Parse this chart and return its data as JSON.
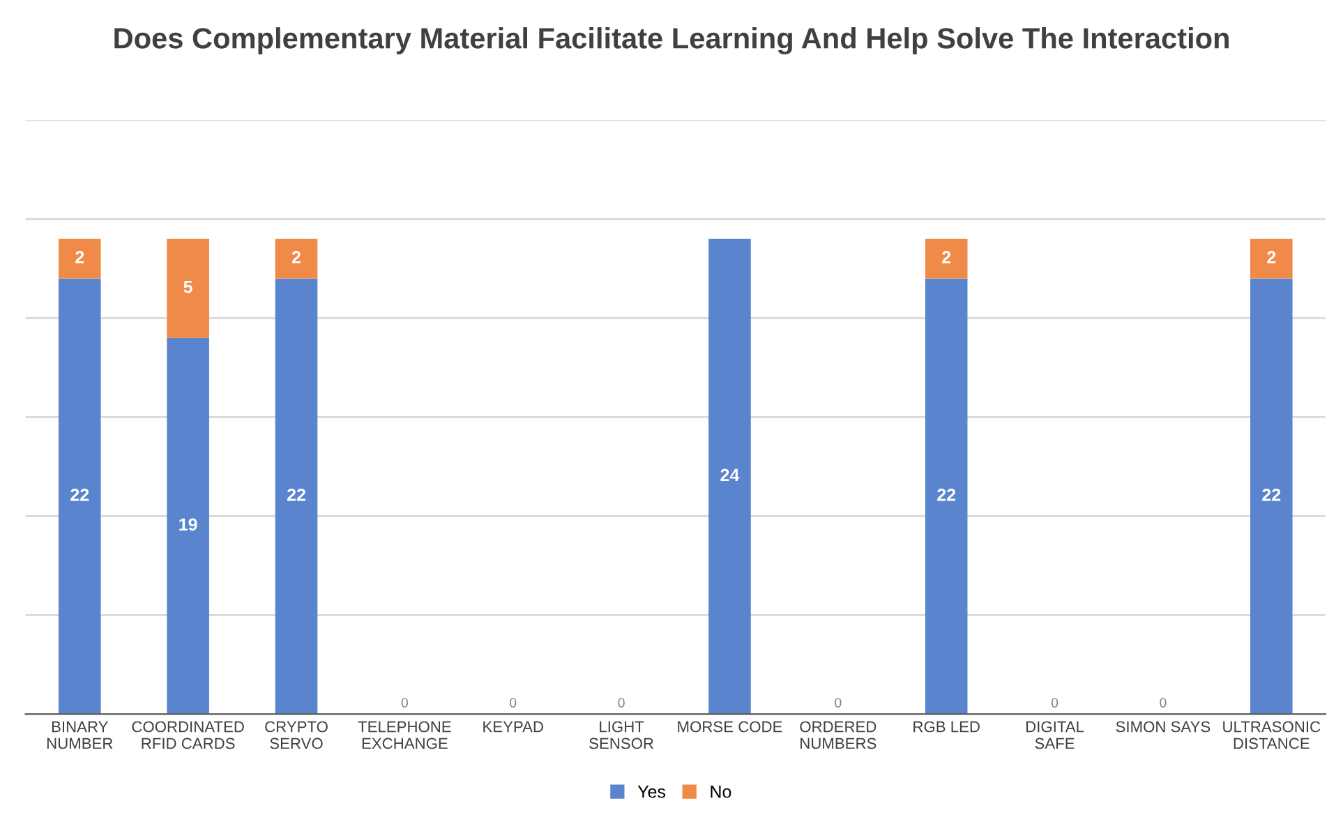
{
  "chart_data": {
    "type": "bar",
    "stacked": true,
    "title": "Does Complementary Material Facilitate Learning And Help Solve The Interaction",
    "categories": [
      "BINARY NUMBER",
      "COORDINATED RFID CARDS",
      "CRYPTO SERVO",
      "TELEPHONE EXCHANGE",
      "KEYPAD",
      "LIGHT SENSOR",
      "MORSE CODE",
      "ORDERED NUMBERS",
      "RGB LED",
      "DIGITAL SAFE",
      "SIMON SAYS",
      "ULTRASONIC DISTANCE"
    ],
    "series": [
      {
        "name": "Yes",
        "color": "#5b84cf",
        "values": [
          22,
          19,
          22,
          0,
          0,
          0,
          24,
          0,
          22,
          0,
          0,
          22
        ],
        "value_labels": [
          "22",
          "19",
          "22",
          "0",
          "0",
          "0",
          "24",
          "0",
          "22",
          "0",
          "0",
          "22"
        ]
      },
      {
        "name": "No",
        "color": "#ef8a48",
        "values": [
          2,
          5,
          2,
          0,
          0,
          0,
          0,
          0,
          2,
          0,
          0,
          2
        ],
        "value_labels": [
          "2",
          "5",
          "2",
          null,
          null,
          null,
          null,
          null,
          "2",
          null,
          null,
          "2"
        ]
      }
    ],
    "ylim": [
      0,
      30
    ],
    "yticks": [
      {
        "value": 0,
        "label": null
      },
      {
        "value": 5,
        "label": null
      },
      {
        "value": 10,
        "label": null
      },
      {
        "value": 15,
        "label": null
      },
      {
        "value": 20,
        "label": null
      },
      {
        "value": 25,
        "label": null
      },
      {
        "value": 30,
        "label": null
      }
    ],
    "tick_labels": "x",
    "grid": "y",
    "legend": "bottom"
  }
}
